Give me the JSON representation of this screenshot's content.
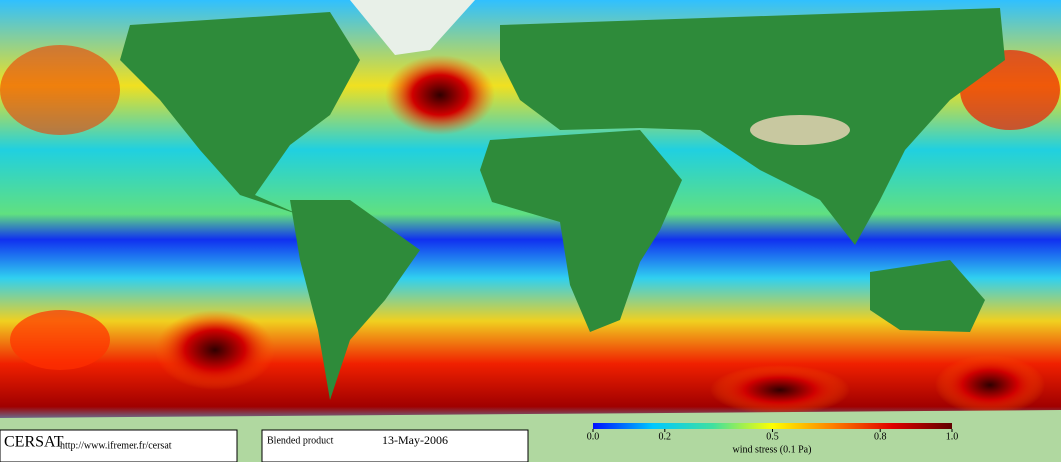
{
  "footer": {
    "logo": "CERSAT",
    "url": "http://www.ifremer.fr/cersat",
    "product": "Blended product",
    "date": "13-May-2006"
  },
  "colorbar": {
    "label": "wind stress (0.1 Pa)",
    "lim": [
      0,
      1
    ],
    "ticks": [
      {
        "value": 0,
        "label": "0.0"
      },
      0.2,
      0.5,
      0.8,
      {
        "value": 1,
        "label": "1.0"
      }
    ],
    "colors": [
      "#0010ff",
      "#00c8ff",
      "#40e0a0",
      "#ffff00",
      "#ff8000",
      "#e00000",
      "#600000"
    ]
  }
}
